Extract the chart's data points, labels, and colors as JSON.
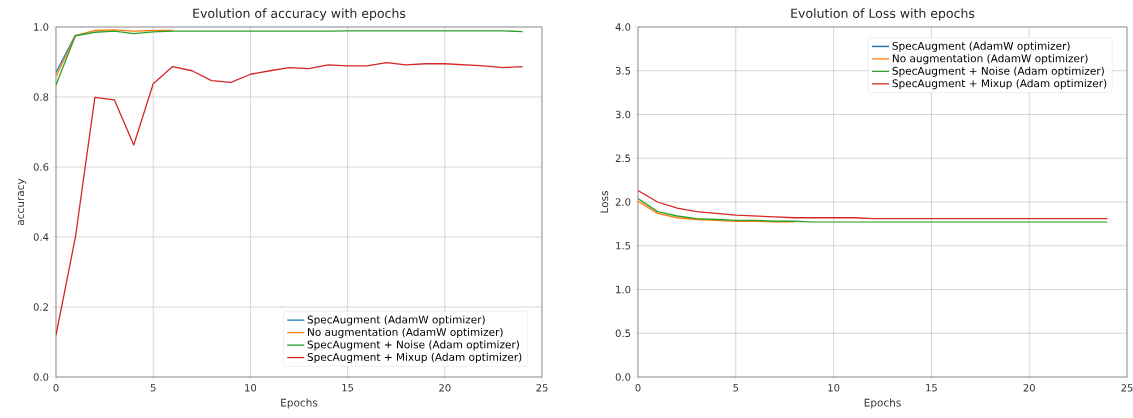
{
  "chart_data": [
    {
      "type": "line",
      "title": "Evolution of accuracy with epochs",
      "xlabel": "Epochs",
      "ylabel": "accuracy",
      "x": [
        0,
        1,
        2,
        3,
        4,
        5,
        6,
        7,
        8,
        9,
        10,
        11,
        12,
        13,
        14,
        15,
        16,
        17,
        18,
        19,
        20,
        21,
        22,
        23,
        24
      ],
      "series": [
        {
          "name": "SpecAugment (AdamW optimizer)",
          "color": "#1f77b4",
          "values": [
            0.87,
            0.977,
            null,
            null,
            null,
            null,
            null,
            null,
            null,
            null,
            null,
            null,
            null,
            null,
            null,
            null,
            null,
            null,
            null,
            null,
            null,
            null,
            null,
            null,
            null
          ]
        },
        {
          "name": "No augmentation (AdamW optimizer)",
          "color": "#ff7f0e",
          "values": [
            0.858,
            0.975,
            0.99,
            0.992,
            0.988,
            0.99,
            0.99,
            null,
            null,
            null,
            null,
            null,
            null,
            null,
            null,
            null,
            null,
            null,
            null,
            null,
            null,
            null,
            null,
            null,
            null
          ]
        },
        {
          "name": "SpecAugment + Noise (Adam optimizer)",
          "color": "#2ca02c",
          "values": [
            0.834,
            0.975,
            0.985,
            0.988,
            0.981,
            0.986,
            0.988,
            0.988,
            0.988,
            0.988,
            0.988,
            0.988,
            0.988,
            0.988,
            0.988,
            0.989,
            0.989,
            0.989,
            0.989,
            0.989,
            0.989,
            0.989,
            0.989,
            0.989,
            0.987
          ]
        },
        {
          "name": "SpecAugment + Mixup (Adam optimizer)",
          "color": "#d62728",
          "values": [
            0.12,
            0.4,
            0.799,
            0.792,
            0.663,
            0.838,
            0.887,
            0.875,
            0.847,
            0.842,
            0.865,
            0.875,
            0.884,
            0.881,
            0.892,
            0.889,
            0.889,
            0.898,
            0.892,
            0.895,
            0.895,
            0.892,
            0.889,
            0.884,
            0.887
          ]
        }
      ],
      "xlim": [
        0,
        25
      ],
      "ylim": [
        0,
        1
      ],
      "xticks": [
        0,
        5,
        10,
        15,
        20,
        25
      ],
      "yticks": [
        {
          "value": 0,
          "label": "0.0"
        },
        {
          "value": 0.2,
          "label": "0.2"
        },
        {
          "value": 0.4,
          "label": "0.4"
        },
        {
          "value": 0.6,
          "label": "0.6"
        },
        {
          "value": 0.8,
          "label": "0.8"
        },
        {
          "value": 1,
          "label": "1.0"
        }
      ],
      "grid": true,
      "legend": "bottom right",
      "marker": "none"
    },
    {
      "type": "line",
      "title": "Evolution of Loss with epochs",
      "xlabel": "Epochs",
      "ylabel": "Loss",
      "x": [
        0,
        1,
        2,
        3,
        4,
        5,
        6,
        7,
        8,
        9,
        10,
        11,
        12,
        13,
        14,
        15,
        16,
        17,
        18,
        19,
        20,
        21,
        22,
        23,
        24
      ],
      "series": [
        {
          "name": "SpecAugment (AdamW optimizer)",
          "color": "#1f77b4",
          "values": [
            null,
            null,
            null,
            null,
            null,
            null,
            null,
            null,
            null,
            null,
            null,
            null,
            null,
            null,
            null,
            null,
            null,
            null,
            null,
            null,
            null,
            null,
            null,
            null,
            null
          ]
        },
        {
          "name": "No augmentation (AdamW optimizer)",
          "color": "#ff7f0e",
          "values": [
            2.01,
            1.87,
            1.82,
            1.8,
            1.79,
            1.78,
            1.78,
            1.77,
            1.77,
            null,
            null,
            null,
            null,
            null,
            null,
            null,
            null,
            null,
            null,
            null,
            null,
            null,
            null,
            null,
            null
          ]
        },
        {
          "name": "SpecAugment + Noise (Adam optimizer)",
          "color": "#2ca02c",
          "values": [
            2.04,
            1.89,
            1.84,
            1.81,
            1.8,
            1.79,
            1.79,
            1.78,
            1.78,
            1.77,
            1.77,
            1.77,
            1.77,
            1.77,
            1.77,
            1.77,
            1.77,
            1.77,
            1.77,
            1.77,
            1.77,
            1.77,
            1.77,
            1.77,
            1.77
          ]
        },
        {
          "name": "SpecAugment + Mixup (Adam optimizer)",
          "color": "#d62728",
          "values": [
            2.13,
            2.0,
            1.93,
            1.89,
            1.87,
            1.85,
            1.84,
            1.83,
            1.82,
            1.82,
            1.82,
            1.82,
            1.81,
            1.81,
            1.81,
            1.81,
            1.81,
            1.81,
            1.81,
            1.81,
            1.81,
            1.81,
            1.81,
            1.81,
            1.81
          ]
        }
      ],
      "xlim": [
        0,
        25
      ],
      "ylim": [
        0,
        4
      ],
      "xticks": [
        0,
        5,
        10,
        15,
        20,
        25
      ],
      "yticks": [
        {
          "value": 0,
          "label": "0.0"
        },
        {
          "value": 0.5,
          "label": "0.5"
        },
        {
          "value": 1,
          "label": "1.0"
        },
        {
          "value": 1.5,
          "label": "1.5"
        },
        {
          "value": 2,
          "label": "2.0"
        },
        {
          "value": 2.5,
          "label": "2.5"
        },
        {
          "value": 3,
          "label": "3.0"
        },
        {
          "value": 3.5,
          "label": "3.5"
        },
        {
          "value": 4,
          "label": "4.0"
        }
      ],
      "grid": true,
      "legend": "top right",
      "marker": "none"
    }
  ]
}
